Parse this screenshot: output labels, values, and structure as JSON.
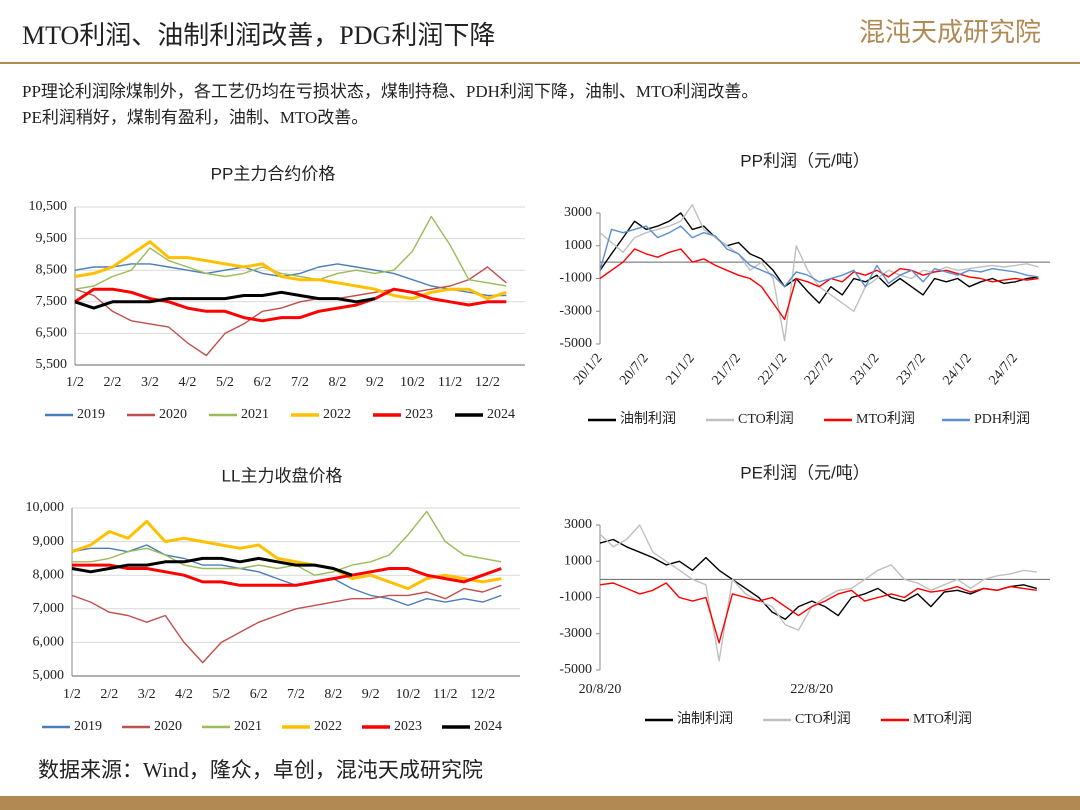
{
  "title": "MTO利润、油制利润改善，PDG利润下降",
  "logo": "混沌天成研究院",
  "summary": [
    "PP理论利润除煤制外，各工艺仍均在亏损状态，煤制持稳、PDH利润下降，油制、MTO利润改善。",
    "PE利润稍好，煤制有盈利，油制、MTO改善。"
  ],
  "source": "数据来源：Wind，隆众，卓创，混沌天成研究院",
  "chart_data": [
    {
      "type": "line",
      "title": "PP主力合约价格",
      "grid": true,
      "categories": [
        "1/2",
        null,
        "2/2",
        null,
        "3/2",
        null,
        "4/2",
        null,
        "5/2",
        null,
        "6/2",
        null,
        "7/2",
        null,
        "8/2",
        null,
        "9/2",
        null,
        "10/2",
        null,
        "11/2",
        null,
        "12/2",
        null
      ],
      "ylim": [
        5500,
        10500
      ],
      "yticks": [
        {
          "value": 5500,
          "label": "5,500"
        },
        {
          "value": 6500,
          "label": "6,500"
        },
        {
          "value": 7500,
          "label": "7,500"
        },
        {
          "value": 8500,
          "label": "8,500"
        },
        {
          "value": 9500,
          "label": "9,500"
        },
        {
          "value": 10500,
          "label": "10,500"
        }
      ],
      "series": [
        {
          "name": "2019",
          "color": "#4a7ebb",
          "values": [
            8500,
            8600,
            8600,
            8700,
            8700,
            8600,
            8500,
            8400,
            8500,
            8600,
            8400,
            8300,
            8400,
            8600,
            8700,
            8600,
            8500,
            8400,
            8200,
            8000,
            7900,
            7800,
            7700,
            7700
          ]
        },
        {
          "name": "2020",
          "color": "#c0504d",
          "values": [
            7900,
            7700,
            7200,
            6900,
            6800,
            6700,
            6200,
            5800,
            6500,
            6800,
            7200,
            7300,
            7500,
            7600,
            7600,
            7700,
            7800,
            7900,
            7800,
            7900,
            8000,
            8200,
            8600,
            8100
          ]
        },
        {
          "name": "2021",
          "color": "#9bbb59",
          "values": [
            7900,
            8000,
            8300,
            8500,
            9200,
            8800,
            8600,
            8400,
            8300,
            8400,
            8600,
            8400,
            8300,
            8200,
            8400,
            8500,
            8400,
            8500,
            9100,
            10200,
            9300,
            8200,
            8100,
            8000
          ]
        },
        {
          "name": "2022",
          "color": "#ffc000",
          "values": [
            8300,
            8400,
            8600,
            9000,
            9400,
            8900,
            8900,
            8800,
            8700,
            8600,
            8700,
            8300,
            8200,
            8200,
            8100,
            8000,
            7900,
            7700,
            7600,
            7800,
            7900,
            7900,
            7600,
            7800
          ]
        },
        {
          "name": "2023",
          "color": "#ff0000",
          "values": [
            7500,
            7900,
            7900,
            7800,
            7600,
            7500,
            7300,
            7200,
            7200,
            7000,
            6900,
            7000,
            7000,
            7200,
            7300,
            7400,
            7600,
            7900,
            7800,
            7600,
            7500,
            7400,
            7500,
            7500
          ]
        },
        {
          "name": "2024",
          "color": "#000000",
          "values": [
            7500,
            7300,
            7500,
            7500,
            7500,
            7600,
            7600,
            7600,
            7600,
            7700,
            7700,
            7800,
            7700,
            7600,
            7600,
            7500,
            7600,
            null,
            null,
            null,
            null,
            null,
            null,
            null
          ]
        }
      ]
    },
    {
      "type": "line",
      "title": "LL主力收盘价格",
      "grid": true,
      "categories": [
        "1/2",
        null,
        "2/2",
        null,
        "3/2",
        null,
        "4/2",
        null,
        "5/2",
        null,
        "6/2",
        null,
        "7/2",
        null,
        "8/2",
        null,
        "9/2",
        null,
        "10/2",
        null,
        "11/2",
        null,
        "12/2",
        null
      ],
      "ylim": [
        5000,
        10000
      ],
      "yticks": [
        {
          "value": 5000,
          "label": "5,000"
        },
        {
          "value": 6000,
          "label": "6,000"
        },
        {
          "value": 7000,
          "label": "7,000"
        },
        {
          "value": 8000,
          "label": "8,000"
        },
        {
          "value": 9000,
          "label": "9,000"
        },
        {
          "value": 10000,
          "label": "10,000"
        }
      ],
      "series": [
        {
          "name": "2019",
          "color": "#4a7ebb",
          "values": [
            8700,
            8800,
            8800,
            8700,
            8900,
            8600,
            8500,
            8300,
            8300,
            8200,
            8100,
            7900,
            7700,
            7800,
            7900,
            7600,
            7400,
            7300,
            7100,
            7300,
            7200,
            7300,
            7200,
            7400
          ]
        },
        {
          "name": "2020",
          "color": "#c0504d",
          "values": [
            7400,
            7200,
            6900,
            6800,
            6600,
            6800,
            6000,
            5400,
            6000,
            6300,
            6600,
            6800,
            7000,
            7100,
            7200,
            7300,
            7300,
            7400,
            7400,
            7500,
            7300,
            7600,
            7500,
            7700
          ]
        },
        {
          "name": "2021",
          "color": "#9bbb59",
          "values": [
            8400,
            8400,
            8500,
            8700,
            8800,
            8600,
            8300,
            8200,
            8200,
            8200,
            8300,
            8200,
            8300,
            8000,
            8100,
            8300,
            8400,
            8600,
            9200,
            9900,
            9000,
            8600,
            8500,
            8400
          ]
        },
        {
          "name": "2022",
          "color": "#ffc000",
          "values": [
            8700,
            8900,
            9300,
            9100,
            9600,
            9000,
            9100,
            9000,
            8900,
            8800,
            8900,
            8500,
            8400,
            8300,
            8200,
            7900,
            8000,
            7800,
            7600,
            7900,
            8000,
            7900,
            7800,
            7900
          ]
        },
        {
          "name": "2023",
          "color": "#ff0000",
          "values": [
            8300,
            8300,
            8300,
            8200,
            8200,
            8100,
            8000,
            7800,
            7800,
            7700,
            7700,
            7700,
            7700,
            7800,
            7900,
            8000,
            8100,
            8200,
            8200,
            8000,
            7900,
            7800,
            8000,
            8200
          ]
        },
        {
          "name": "2024",
          "color": "#000000",
          "values": [
            8200,
            8100,
            8200,
            8300,
            8300,
            8400,
            8400,
            8500,
            8500,
            8400,
            8500,
            8400,
            8300,
            8300,
            8200,
            8000,
            null,
            null,
            null,
            null,
            null,
            null,
            null,
            null
          ]
        }
      ]
    },
    {
      "type": "line",
      "title": "PP利润（元/吨）",
      "grid": false,
      "rotate_labels": true,
      "categories": [
        "20/1/2",
        null,
        null,
        null,
        "20/7/2",
        null,
        null,
        null,
        "21/1/2",
        null,
        null,
        null,
        "21/7/2",
        null,
        null,
        null,
        "22/1/2",
        null,
        null,
        null,
        "22/7/2",
        null,
        null,
        null,
        "23/1/2",
        null,
        null,
        null,
        "23/7/2",
        null,
        null,
        null,
        "24/1/2",
        null,
        null,
        null,
        "24/7/2",
        null,
        null
      ],
      "ylim": [
        -5000,
        3000
      ],
      "yticks": [
        -5000,
        -3000,
        -1000,
        1000,
        3000
      ],
      "series": [
        {
          "name": "油制利润",
          "color": "#000000",
          "values": [
            -500,
            500,
            1500,
            2500,
            2000,
            2200,
            2500,
            3000,
            2000,
            2200,
            1500,
            1000,
            1200,
            500,
            200,
            -500,
            -1500,
            -1000,
            -1800,
            -2500,
            -1500,
            -2000,
            -1000,
            -1200,
            -800,
            -1500,
            -1000,
            -1500,
            -2000,
            -1000,
            -1200,
            -1000,
            -1500,
            -1200,
            -1000,
            -1300,
            -1200,
            -1000,
            -900
          ]
        },
        {
          "name": "CTO利润",
          "color": "#c0c0c0",
          "values": [
            1800,
            1200,
            600,
            1500,
            1800,
            2000,
            2200,
            2500,
            3500,
            2000,
            1500,
            1000,
            500,
            -500,
            0,
            -1000,
            -4800,
            1000,
            -500,
            -1500,
            -2000,
            -2500,
            -3000,
            -1500,
            -1000,
            -500,
            -800,
            -1000,
            -500,
            -600,
            -300,
            -500,
            -400,
            -300,
            -200,
            -300,
            -200,
            -100,
            -300
          ]
        },
        {
          "name": "MTO利润",
          "color": "#ff0000",
          "values": [
            -1000,
            -500,
            0,
            800,
            500,
            300,
            600,
            800,
            0,
            200,
            -200,
            -500,
            -800,
            -1000,
            -1500,
            -2500,
            -3500,
            -1000,
            -1200,
            -1500,
            -1000,
            -1200,
            -600,
            -800,
            -500,
            -900,
            -400,
            -500,
            -800,
            -600,
            -500,
            -700,
            -900,
            -1000,
            -1200,
            -1100,
            -1000,
            -1100,
            -1000
          ]
        },
        {
          "name": "PDH利润",
          "color": "#5b8fd0",
          "values": [
            -500,
            2000,
            1800,
            2000,
            2200,
            1500,
            1800,
            2200,
            1500,
            1800,
            1600,
            800,
            500,
            -200,
            -500,
            -800,
            -1500,
            -600,
            -800,
            -1200,
            -1000,
            -800,
            -500,
            -1500,
            -200,
            -1300,
            -800,
            -500,
            -1200,
            -400,
            -600,
            -800,
            -500,
            -600,
            -400,
            -500,
            -600,
            -800,
            -900
          ]
        }
      ]
    },
    {
      "type": "line",
      "title": "PE利润（元/吨）",
      "grid": false,
      "categories": [
        "20/8/20",
        null,
        null,
        null,
        null,
        null,
        null,
        null,
        null,
        null,
        null,
        null,
        null,
        null,
        null,
        null,
        "22/8/20",
        null,
        null,
        null,
        null,
        null,
        null,
        null,
        null,
        null,
        null,
        null,
        null,
        null,
        null,
        null,
        null,
        null
      ],
      "ylim": [
        -5000,
        3000
      ],
      "yticks": [
        -5000,
        -3000,
        -1000,
        1000,
        3000
      ],
      "series": [
        {
          "name": "油制利润",
          "color": "#000000",
          "values": [
            2000,
            2200,
            1800,
            1500,
            1200,
            800,
            1000,
            500,
            1200,
            500,
            0,
            -500,
            -1000,
            -1800,
            -2200,
            -1500,
            -1200,
            -1500,
            -2000,
            -1000,
            -800,
            -500,
            -1000,
            -1200,
            -800,
            -1500,
            -700,
            -600,
            -800,
            -500,
            -600,
            -400,
            -300,
            -500
          ]
        },
        {
          "name": "CTO利润",
          "color": "#c0c0c0",
          "values": [
            2500,
            1800,
            2200,
            3000,
            1500,
            1000,
            500,
            0,
            -300,
            -4500,
            0,
            -800,
            -1200,
            -1500,
            -2500,
            -2800,
            -1500,
            -1000,
            -600,
            -500,
            0,
            500,
            800,
            0,
            -200,
            -600,
            -300,
            0,
            -500,
            0,
            200,
            300,
            500,
            400
          ]
        },
        {
          "name": "MTO利润",
          "color": "#ff0000",
          "values": [
            -300,
            -200,
            -500,
            -800,
            -600,
            -200,
            -1000,
            -1200,
            -1000,
            -3500,
            -800,
            -1000,
            -1200,
            -1000,
            -1500,
            -2000,
            -1500,
            -1200,
            -800,
            -600,
            -1200,
            -1000,
            -800,
            -1000,
            -500,
            -700,
            -600,
            -400,
            -700,
            -500,
            -600,
            -400,
            -500,
            -600
          ]
        }
      ]
    }
  ]
}
